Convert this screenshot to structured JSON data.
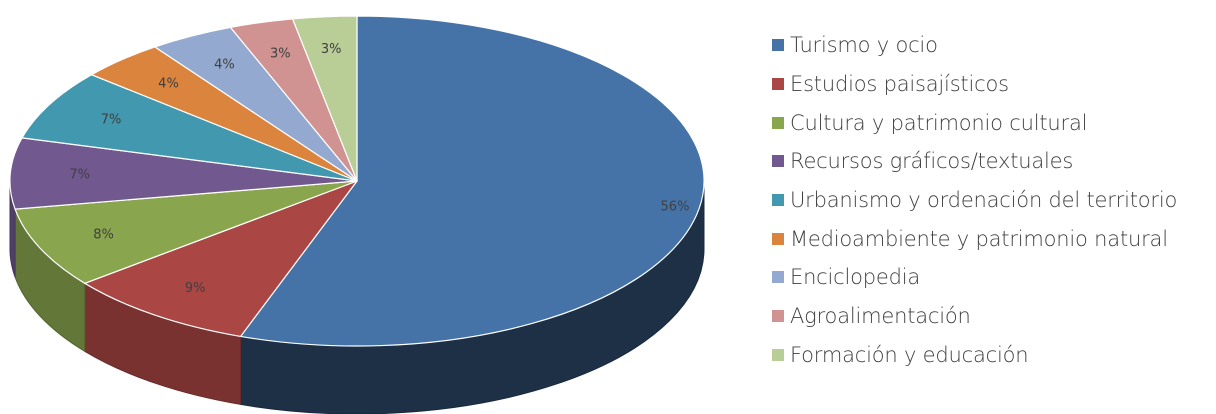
{
  "chart_data": {
    "type": "pie",
    "title": "",
    "style": "3d-exploded-none",
    "categories": [
      "Turismo y ocio",
      "Estudios paisajísticos",
      "Cultura y patrimonio cultural",
      "Recursos gráficos/textuales",
      "Urbanismo y ordenación del territorio",
      "Medioambiente y patrimonio natural",
      "Enciclopedia",
      "Agroalimentación",
      "Formación y educación"
    ],
    "values": [
      56,
      9,
      8,
      7,
      7,
      4,
      4,
      3,
      3
    ],
    "value_labels": [
      "56%",
      "9%",
      "8%",
      "7%",
      "7%",
      "4%",
      "4%",
      "3%",
      "3%"
    ],
    "colors": [
      "#4572A7",
      "#AA4643",
      "#89A54E",
      "#71588F",
      "#4198AF",
      "#DB843D",
      "#93A9CF",
      "#D19392",
      "#B9CD96"
    ],
    "legend_position": "right"
  }
}
